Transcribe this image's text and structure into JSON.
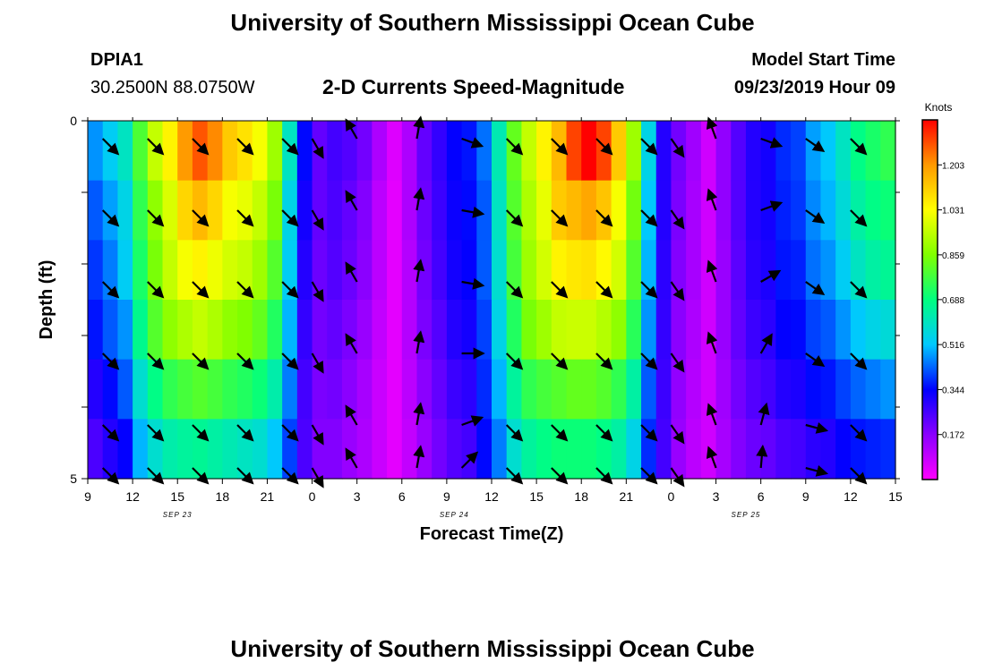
{
  "header": {
    "title": "University of Southern Mississippi Ocean Cube",
    "station_id": "DPIA1",
    "station_coords": "30.2500N 88.0750W",
    "plot_title": "2-D Currents Speed-Magnitude",
    "model_label": "Model Start Time",
    "model_time": "09/23/2019 Hour 09"
  },
  "footer": {
    "title": "University of Southern Mississippi Ocean Cube"
  },
  "chart_data": {
    "type": "heatmap",
    "title": "2-D Currents Speed-Magnitude",
    "xlabel": "Forecast Time(Z)",
    "ylabel": "Depth (ft)",
    "x_hours": [
      0,
      3,
      6,
      9,
      12,
      15,
      18,
      21,
      24,
      27,
      30,
      33,
      36,
      39,
      42,
      45,
      48,
      51,
      54
    ],
    "x_tick_labels": [
      "9",
      "12",
      "15",
      "18",
      "21",
      "0",
      "3",
      "6",
      "9",
      "12",
      "15",
      "18",
      "21",
      "0",
      "3",
      "6",
      "9",
      "12",
      "15"
    ],
    "date_labels": [
      {
        "hour": 6,
        "text": "SEP 23"
      },
      {
        "hour": 24.5,
        "text": "SEP 24"
      },
      {
        "hour": 44,
        "text": "SEP 25"
      }
    ],
    "xlim": [
      0,
      54
    ],
    "ylim": [
      0,
      5
    ],
    "y_tick_labels": [
      "0",
      "",
      "",
      "",
      "",
      "5"
    ],
    "depth_layers": 5,
    "colorbar": {
      "unit": "Knots",
      "range": [
        0.0,
        1.375
      ],
      "tick_labels": [
        "1.203",
        "1.031",
        "0.859",
        "0.688",
        "0.516",
        "0.344",
        "0.172"
      ],
      "tick_values": [
        1.203,
        1.031,
        0.859,
        0.688,
        0.516,
        0.344,
        0.172
      ]
    },
    "speed_profiles": [
      {
        "hour": 0,
        "values": [
          0.47,
          0.42,
          0.39,
          0.36,
          0.3,
          0.25
        ]
      },
      {
        "hour": 1,
        "values": [
          0.53,
          0.48,
          0.45,
          0.42,
          0.35,
          0.3
        ]
      },
      {
        "hour": 2,
        "values": [
          0.6,
          0.55,
          0.53,
          0.47,
          0.42,
          0.34
        ]
      },
      {
        "hour": 3,
        "values": [
          0.79,
          0.75,
          0.72,
          0.67,
          0.58,
          0.5
        ]
      },
      {
        "hour": 4,
        "values": [
          0.95,
          0.88,
          0.85,
          0.8,
          0.68,
          0.58
        ]
      },
      {
        "hour": 5,
        "values": [
          1.05,
          0.98,
          0.95,
          0.88,
          0.75,
          0.63
        ]
      },
      {
        "hour": 6,
        "values": [
          1.2,
          1.1,
          1.02,
          0.92,
          0.78,
          0.65
        ]
      },
      {
        "hour": 7,
        "values": [
          1.28,
          1.15,
          1.05,
          0.95,
          0.8,
          0.66
        ]
      },
      {
        "hour": 8,
        "values": [
          1.22,
          1.1,
          1.01,
          0.92,
          0.78,
          0.64
        ]
      },
      {
        "hour": 9,
        "values": [
          1.12,
          1.02,
          0.97,
          0.88,
          0.75,
          0.62
        ]
      },
      {
        "hour": 10,
        "values": [
          1.08,
          1.0,
          0.95,
          0.86,
          0.73,
          0.6
        ]
      },
      {
        "hour": 11,
        "values": [
          1.02,
          0.95,
          0.9,
          0.82,
          0.7,
          0.58
        ]
      },
      {
        "hour": 12,
        "values": [
          0.9,
          0.85,
          0.8,
          0.73,
          0.63,
          0.52
        ]
      },
      {
        "hour": 13,
        "values": [
          0.6,
          0.55,
          0.53,
          0.5,
          0.45,
          0.4
        ]
      },
      {
        "hour": 14,
        "values": [
          0.35,
          0.32,
          0.3,
          0.28,
          0.26,
          0.25
        ]
      },
      {
        "hour": 15,
        "values": [
          0.22,
          0.22,
          0.21,
          0.2,
          0.19,
          0.18
        ]
      },
      {
        "hour": 16,
        "values": [
          0.26,
          0.25,
          0.24,
          0.22,
          0.2,
          0.18
        ]
      },
      {
        "hour": 17,
        "values": [
          0.24,
          0.22,
          0.21,
          0.19,
          0.17,
          0.15
        ]
      },
      {
        "hour": 18,
        "values": [
          0.2,
          0.18,
          0.17,
          0.15,
          0.13,
          0.12
        ]
      },
      {
        "hour": 19,
        "values": [
          0.12,
          0.1,
          0.1,
          0.09,
          0.08,
          0.08
        ]
      },
      {
        "hour": 20,
        "values": [
          0.05,
          0.04,
          0.04,
          0.04,
          0.04,
          0.04
        ]
      },
      {
        "hour": 21,
        "values": [
          0.12,
          0.12,
          0.11,
          0.11,
          0.1,
          0.09
        ]
      },
      {
        "hour": 22,
        "values": [
          0.22,
          0.21,
          0.2,
          0.19,
          0.17,
          0.15
        ]
      },
      {
        "hour": 23,
        "values": [
          0.28,
          0.27,
          0.26,
          0.24,
          0.22,
          0.2
        ]
      },
      {
        "hour": 24,
        "values": [
          0.34,
          0.33,
          0.32,
          0.3,
          0.27,
          0.24
        ]
      },
      {
        "hour": 25,
        "values": [
          0.36,
          0.35,
          0.34,
          0.32,
          0.29,
          0.26
        ]
      },
      {
        "hour": 26,
        "values": [
          0.44,
          0.42,
          0.42,
          0.4,
          0.38,
          0.35
        ]
      },
      {
        "hour": 27,
        "values": [
          0.62,
          0.6,
          0.58,
          0.55,
          0.5,
          0.45
        ]
      },
      {
        "hour": 28,
        "values": [
          0.82,
          0.8,
          0.78,
          0.73,
          0.65,
          0.58
        ]
      },
      {
        "hour": 29,
        "values": [
          0.95,
          0.92,
          0.9,
          0.85,
          0.75,
          0.65
        ]
      },
      {
        "hour": 30,
        "values": [
          1.05,
          1.0,
          0.97,
          0.9,
          0.78,
          0.68
        ]
      },
      {
        "hour": 31,
        "values": [
          1.15,
          1.12,
          1.05,
          0.95,
          0.8,
          0.7
        ]
      },
      {
        "hour": 32,
        "values": [
          1.3,
          1.15,
          1.07,
          0.96,
          0.82,
          0.7
        ]
      },
      {
        "hour": 33,
        "values": [
          1.375,
          1.18,
          1.08,
          0.96,
          0.82,
          0.7
        ]
      },
      {
        "hour": 34,
        "values": [
          1.3,
          1.13,
          1.04,
          0.93,
          0.8,
          0.68
        ]
      },
      {
        "hour": 35,
        "values": [
          1.12,
          1.02,
          0.97,
          0.88,
          0.75,
          0.64
        ]
      },
      {
        "hour": 36,
        "values": [
          0.9,
          0.84,
          0.8,
          0.74,
          0.64,
          0.55
        ]
      },
      {
        "hour": 37,
        "values": [
          0.55,
          0.52,
          0.5,
          0.47,
          0.42,
          0.38
        ]
      },
      {
        "hour": 38,
        "values": [
          0.3,
          0.3,
          0.29,
          0.28,
          0.27,
          0.26
        ]
      },
      {
        "hour": 39,
        "values": [
          0.2,
          0.19,
          0.18,
          0.17,
          0.16,
          0.15
        ]
      },
      {
        "hour": 40,
        "values": [
          0.14,
          0.13,
          0.13,
          0.12,
          0.11,
          0.1
        ]
      },
      {
        "hour": 41,
        "values": [
          0.07,
          0.07,
          0.07,
          0.07,
          0.07,
          0.07
        ]
      },
      {
        "hour": 42,
        "values": [
          0.16,
          0.16,
          0.15,
          0.15,
          0.14,
          0.13
        ]
      },
      {
        "hour": 43,
        "values": [
          0.24,
          0.24,
          0.23,
          0.22,
          0.2,
          0.18
        ]
      },
      {
        "hour": 44,
        "values": [
          0.3,
          0.3,
          0.29,
          0.27,
          0.24,
          0.21
        ]
      },
      {
        "hour": 45,
        "values": [
          0.32,
          0.32,
          0.31,
          0.29,
          0.26,
          0.22
        ]
      },
      {
        "hour": 46,
        "values": [
          0.38,
          0.37,
          0.36,
          0.34,
          0.3,
          0.25
        ]
      },
      {
        "hour": 47,
        "values": [
          0.4,
          0.39,
          0.37,
          0.35,
          0.31,
          0.26
        ]
      },
      {
        "hour": 48,
        "values": [
          0.48,
          0.46,
          0.44,
          0.4,
          0.35,
          0.29
        ]
      },
      {
        "hour": 49,
        "values": [
          0.52,
          0.5,
          0.47,
          0.42,
          0.36,
          0.3
        ]
      },
      {
        "hour": 50,
        "values": [
          0.6,
          0.57,
          0.53,
          0.47,
          0.4,
          0.34
        ]
      },
      {
        "hour": 51,
        "values": [
          0.68,
          0.64,
          0.6,
          0.52,
          0.43,
          0.36
        ]
      },
      {
        "hour": 52,
        "values": [
          0.72,
          0.68,
          0.64,
          0.55,
          0.45,
          0.37
        ]
      },
      {
        "hour": 53,
        "values": [
          0.75,
          0.7,
          0.66,
          0.57,
          0.47,
          0.38
        ]
      }
    ],
    "arrow_hours": [
      1,
      4,
      7,
      10,
      13,
      15,
      18,
      22,
      25,
      28,
      31,
      34,
      37,
      39,
      42,
      45,
      48,
      51
    ],
    "arrow_depths": [
      0.25,
      1.25,
      2.25,
      3.25,
      4.25,
      4.85
    ],
    "arrow_direction_deg": [
      [
        135,
        135,
        135,
        135,
        135,
        135
      ],
      [
        135,
        135,
        135,
        135,
        135,
        135
      ],
      [
        135,
        135,
        135,
        135,
        135,
        135
      ],
      [
        135,
        135,
        135,
        135,
        135,
        135
      ],
      [
        135,
        135,
        135,
        135,
        135,
        135
      ],
      [
        150,
        150,
        150,
        150,
        150,
        150
      ],
      [
        330,
        330,
        330,
        330,
        330,
        330
      ],
      [
        10,
        10,
        10,
        10,
        10,
        10
      ],
      [
        110,
        100,
        100,
        90,
        70,
        45
      ],
      [
        135,
        135,
        135,
        135,
        135,
        135
      ],
      [
        135,
        135,
        135,
        135,
        135,
        135
      ],
      [
        135,
        135,
        135,
        135,
        135,
        135
      ],
      [
        135,
        135,
        135,
        135,
        135,
        135
      ],
      [
        145,
        145,
        145,
        145,
        145,
        145
      ],
      [
        340,
        340,
        340,
        340,
        340,
        340
      ],
      [
        110,
        70,
        60,
        30,
        15,
        5
      ],
      [
        125,
        125,
        125,
        125,
        105,
        105
      ],
      [
        135,
        135,
        135,
        135,
        135,
        135
      ]
    ]
  }
}
